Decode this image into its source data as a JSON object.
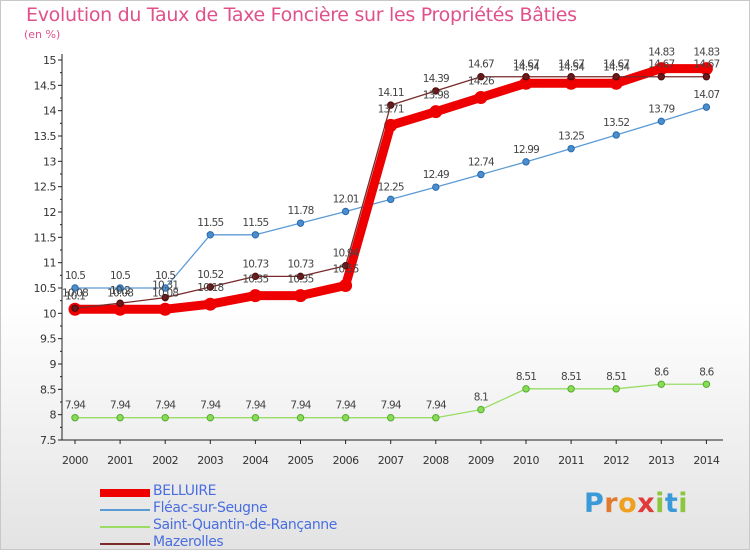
{
  "title": "Evolution du Taux de Taxe Foncière sur les Propriétés Bâties",
  "subtitle": "(en %)",
  "logo": {
    "letters": [
      "P",
      "r",
      "o",
      "x",
      "i",
      "t",
      "i"
    ],
    "colors": [
      "#3a9ad8",
      "#e07a2e",
      "#f0a020",
      "#e03a3a",
      "#8cc63f",
      "#3a9ad8",
      "#8cc63f"
    ]
  },
  "chart_data": {
    "type": "line",
    "title": "Evolution du Taux de Taxe Foncière sur les Propriétés Bâties",
    "ylabel": "(en %)",
    "xlabel": "",
    "x": [
      "2000",
      "2001",
      "2002",
      "2003",
      "2004",
      "2005",
      "2006",
      "2007",
      "2008",
      "2009",
      "2010",
      "2011",
      "2012",
      "2013",
      "2014"
    ],
    "ylim": [
      7.5,
      15
    ],
    "yticks": [
      "7.5",
      "8",
      "8.5",
      "9",
      "9.5",
      "10",
      "10.5",
      "11",
      "11.5",
      "12",
      "12.5",
      "13",
      "13.5",
      "14",
      "14.5",
      "15"
    ],
    "grid": false,
    "legend_position": "bottom-left",
    "series": [
      {
        "name": "BELLUIRE",
        "color": "#ee0000",
        "values": [
          10.08,
          10.08,
          10.08,
          10.18,
          10.35,
          10.35,
          10.55,
          13.71,
          13.98,
          14.26,
          14.54,
          14.54,
          14.54,
          14.83,
          14.83
        ],
        "labels": [
          "10.08",
          "10.08",
          "10.08",
          "10.18",
          "10.35",
          "10.35",
          "10.55",
          "13.71",
          "13.98",
          "14.26",
          "14.54",
          "14.54",
          "14.54",
          "14.83",
          "14.83"
        ]
      },
      {
        "name": "Fléac-sur-Seugne",
        "color": "#5b9bd5",
        "values": [
          10.5,
          10.5,
          10.5,
          11.55,
          11.55,
          11.78,
          12.01,
          12.25,
          12.49,
          12.74,
          12.99,
          13.25,
          13.52,
          13.79,
          14.07
        ],
        "labels": [
          "10.5",
          "10.5",
          "10.5",
          "11.55",
          "11.55",
          "11.78",
          "12.01",
          "12.25",
          "12.49",
          "12.74",
          "12.99",
          "13.25",
          "13.52",
          "13.79",
          "14.07"
        ]
      },
      {
        "name": "Saint-Quantin-de-Rançanne",
        "color": "#99dd66",
        "values": [
          7.94,
          7.94,
          7.94,
          7.94,
          7.94,
          7.94,
          7.94,
          7.94,
          7.94,
          8.1,
          8.51,
          8.51,
          8.51,
          8.6,
          8.6
        ],
        "labels": [
          "7.94",
          "7.94",
          "7.94",
          "7.94",
          "7.94",
          "7.94",
          "7.94",
          "7.94",
          "7.94",
          "8.1",
          "8.51",
          "8.51",
          "8.51",
          "8.6",
          "8.6"
        ]
      },
      {
        "name": "Mazerolles",
        "color": "#7a2a2a",
        "values": [
          10.1,
          10.2,
          10.31,
          10.52,
          10.73,
          10.73,
          10.94,
          14.11,
          14.39,
          14.67,
          14.67,
          14.67,
          14.67,
          14.67,
          14.67
        ],
        "labels": [
          "10.1",
          "10.2",
          "10.31",
          "10.52",
          "10.73",
          "10.73",
          "10.94",
          "14.11",
          "14.39",
          "14.67",
          "14.67",
          "14.67",
          "14.67",
          "14.67",
          "14.67"
        ]
      }
    ]
  }
}
